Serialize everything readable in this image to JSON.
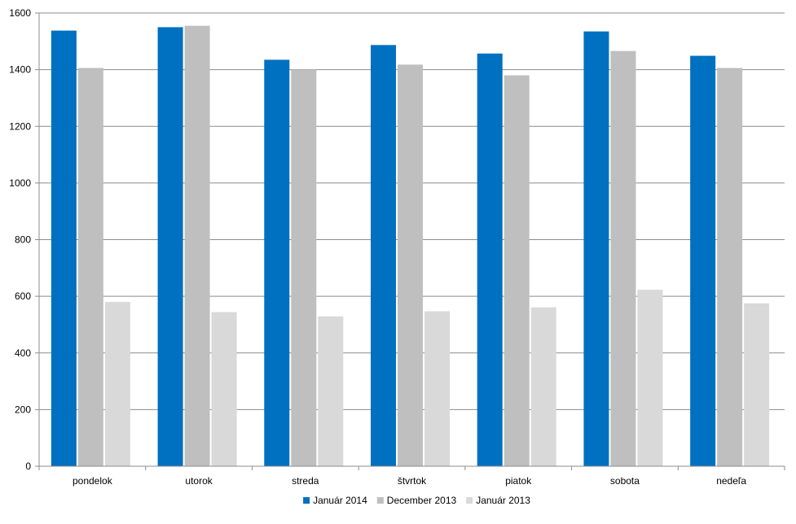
{
  "chart_data": {
    "type": "bar",
    "categories": [
      "pondelok",
      "utorok",
      "streda",
      "štvrtok",
      "piatok",
      "sobota",
      "nedeľa"
    ],
    "series": [
      {
        "name": "Január 2014",
        "color": "#0070C0",
        "values": [
          1538,
          1550,
          1435,
          1487,
          1457,
          1535,
          1449
        ]
      },
      {
        "name": "December 2013",
        "color": "#BFBFBF",
        "values": [
          1406,
          1555,
          1400,
          1418,
          1380,
          1466,
          1406
        ]
      },
      {
        "name": "Január 2013",
        "color": "#D9D9D9",
        "values": [
          580,
          544,
          529,
          547,
          561,
          623,
          575
        ]
      }
    ],
    "ylim": [
      0,
      1600
    ],
    "yticks": [
      0,
      200,
      400,
      600,
      800,
      1000,
      1200,
      1400,
      1600
    ],
    "grid": true,
    "legend_position": "bottom",
    "title": "",
    "xlabel": "",
    "ylabel": ""
  }
}
